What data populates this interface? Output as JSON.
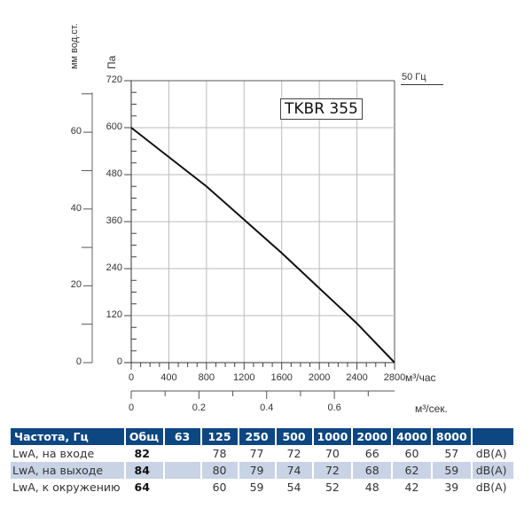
{
  "chart_data": {
    "type": "line",
    "title": "TKBR 355",
    "frequency_label": "50 Гц",
    "xlabel": "м³/час",
    "xlabel_secondary": "м³/сек.",
    "ylabel": "Па",
    "ylabel_secondary": "мм вод.ст.",
    "xlim": [
      0,
      2800
    ],
    "ylim": [
      0,
      720
    ],
    "x_ticks": [
      0,
      400,
      800,
      1200,
      1600,
      2000,
      2400,
      2800
    ],
    "y_ticks": [
      0,
      120,
      240,
      360,
      480,
      600,
      720
    ],
    "x2_ticks": [
      "0",
      "0.2",
      "0.4",
      "0.6"
    ],
    "y2_ticks": [
      "0",
      "20",
      "40",
      "60"
    ],
    "grid": true,
    "series": [
      {
        "name": "TKBR 355",
        "x": [
          0,
          400,
          800,
          1200,
          1600,
          2000,
          2400,
          2800
        ],
        "y": [
          600,
          525,
          450,
          365,
          280,
          190,
          100,
          0
        ]
      }
    ]
  },
  "labels": {
    "mm_axis": "мм вод.ст.",
    "pa_axis": "Па",
    "freq": "50 Гц",
    "model": "TKBR 355",
    "x_unit": "м³/час",
    "x2_unit": "м³/сек."
  },
  "y_ticks_text": [
    "720",
    "600",
    "480",
    "360",
    "240",
    "120",
    "0"
  ],
  "y2_ticks_text": [
    "60",
    "40",
    "20",
    "0"
  ],
  "x_ticks_text": [
    "0",
    "400",
    "800",
    "1200",
    "1600",
    "2000",
    "2400",
    "2800"
  ],
  "x2_ticks_text": [
    "0",
    "0.2",
    "0.4",
    "0.6"
  ],
  "table": {
    "headers": [
      "Частота, Гц",
      "Общ",
      "63",
      "125",
      "250",
      "500",
      "1000",
      "2000",
      "4000",
      "8000",
      ""
    ],
    "rows": [
      {
        "label": "LwA, на входе",
        "total": "82",
        "values": [
          "",
          "78",
          "77",
          "72",
          "70",
          "66",
          "60",
          "57"
        ],
        "unit": "dB(A)"
      },
      {
        "label": "LwA, на выходе",
        "total": "84",
        "values": [
          "",
          "80",
          "79",
          "74",
          "72",
          "68",
          "62",
          "59"
        ],
        "unit": "dB(A)"
      },
      {
        "label": "LwA, к окружению",
        "total": "64",
        "values": [
          "",
          "60",
          "59",
          "54",
          "52",
          "48",
          "42",
          "39"
        ],
        "unit": "dB(A)"
      }
    ]
  },
  "colors": {
    "header_bg": "#0d4782",
    "alt_row_bg": "#c9d3e6",
    "grid": "#bbbbbb",
    "curve": "#111111"
  }
}
